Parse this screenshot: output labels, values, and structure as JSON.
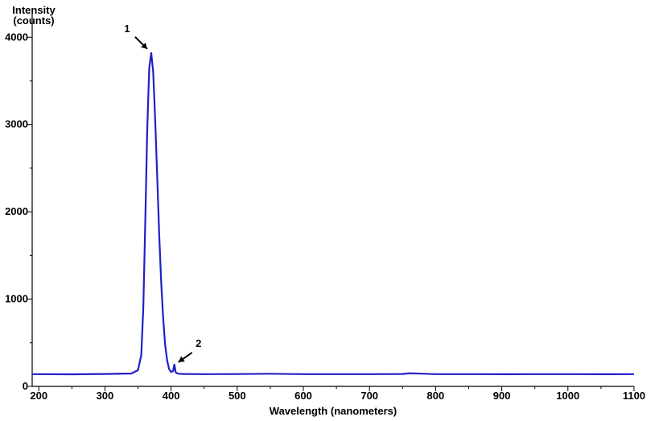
{
  "chart_data": {
    "type": "line",
    "title": "",
    "xlabel": "Wavelength (nanometers)",
    "ylabel_lines": [
      "Intensity",
      "(counts)"
    ],
    "xlim": [
      190,
      1100
    ],
    "ylim": [
      0,
      4150
    ],
    "x_ticks": [
      200,
      300,
      400,
      500,
      600,
      700,
      800,
      900,
      1000,
      1100
    ],
    "y_ticks": [
      0,
      1000,
      2000,
      3000,
      4000
    ],
    "x_tick_labels": [
      "200",
      "300",
      "400",
      "500",
      "600",
      "700",
      "800",
      "900",
      "1000",
      "1100"
    ],
    "y_tick_labels": [
      "0",
      "1000",
      "2000",
      "3000",
      "4000"
    ],
    "grid": false,
    "series": [
      {
        "color": "#1f1fc8",
        "x": [
          190,
          250,
          300,
          340,
          350,
          355,
          358,
          361,
          364,
          367,
          370,
          373,
          376,
          379,
          382,
          385,
          388,
          391,
          394,
          397,
          400,
          403,
          405,
          407,
          409,
          412,
          420,
          450,
          500,
          550,
          600,
          650,
          700,
          750,
          760,
          800,
          850,
          900,
          950,
          1000,
          1050,
          1100
        ],
        "y": [
          140,
          138,
          142,
          148,
          185,
          360,
          900,
          1900,
          2950,
          3650,
          3820,
          3600,
          3050,
          2400,
          1750,
          1200,
          780,
          480,
          300,
          200,
          165,
          175,
          250,
          160,
          150,
          145,
          142,
          140,
          141,
          145,
          140,
          140,
          140,
          142,
          150,
          140,
          140,
          139,
          140,
          140,
          139,
          140
        ]
      }
    ],
    "annotations": [
      {
        "text": "1",
        "x": 370,
        "y": 3820
      },
      {
        "text": "2",
        "x": 405,
        "y": 250
      }
    ]
  }
}
